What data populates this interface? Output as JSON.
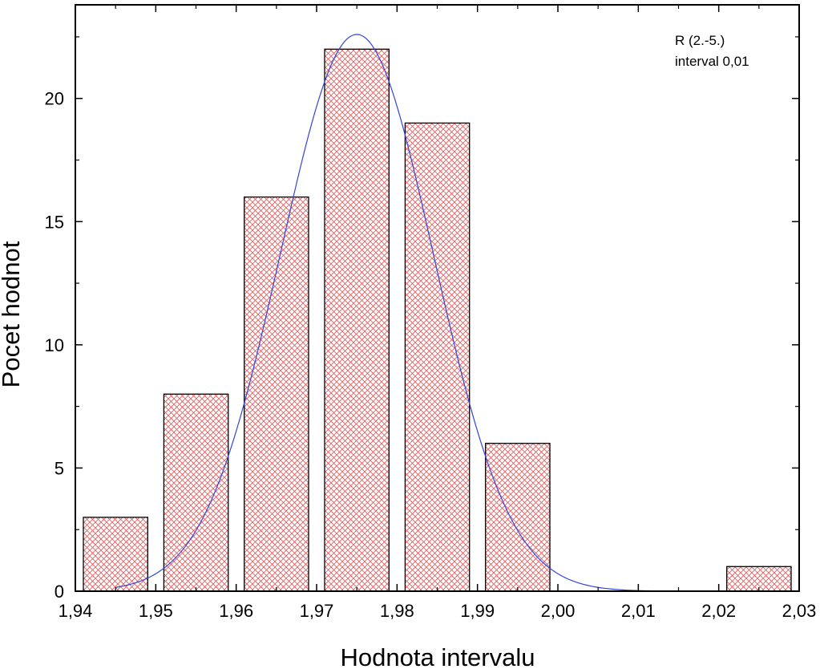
{
  "chart_data": {
    "type": "bar",
    "xlabel": "Hodnota intervalu",
    "ylabel": "Pocet hodnot",
    "xlim": [
      1.94,
      2.03
    ],
    "ylim": [
      0,
      23.8
    ],
    "x_ticks": [
      1.94,
      1.95,
      1.96,
      1.97,
      1.98,
      1.99,
      2.0,
      2.01,
      2.02,
      2.03
    ],
    "x_tick_labels": [
      "1,94",
      "1,95",
      "1,96",
      "1,97",
      "1,98",
      "1,99",
      "2,00",
      "2,01",
      "2,02",
      "2,03"
    ],
    "y_ticks": [
      0,
      5,
      10,
      15,
      20
    ],
    "y_tick_labels": [
      "0",
      "5",
      "10",
      "15",
      "20"
    ],
    "bar_width": 0.008,
    "bars": [
      {
        "x": 1.945,
        "value": 3
      },
      {
        "x": 1.955,
        "value": 8
      },
      {
        "x": 1.965,
        "value": 16
      },
      {
        "x": 1.975,
        "value": 22
      },
      {
        "x": 1.985,
        "value": 19
      },
      {
        "x": 1.995,
        "value": 6
      },
      {
        "x": 2.025,
        "value": 1
      }
    ],
    "fit_curve": {
      "type": "gaussian",
      "mean": 1.975,
      "sigma": 0.0095,
      "amplitude": 22.6,
      "x_range": [
        1.945,
        2.02
      ]
    },
    "annotations": [
      "R (2.-5.)",
      "interval 0,01"
    ],
    "grid": false,
    "colors": {
      "bar_hatch": "#e06060",
      "bar_background": "#ffffff",
      "bar_outline": "#000000",
      "fit_line": "#3344dd",
      "axis": "#000000"
    }
  }
}
